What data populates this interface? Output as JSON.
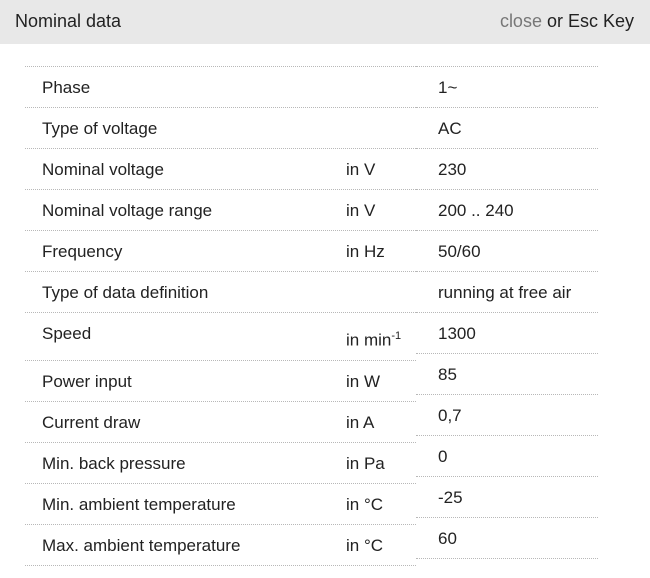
{
  "header": {
    "title": "Nominal data",
    "close_link": "close",
    "close_suffix": " or Esc Key"
  },
  "rows": [
    {
      "label": "Phase",
      "unit": "",
      "value": "1~"
    },
    {
      "label": "Type of voltage",
      "unit": "",
      "value": "AC"
    },
    {
      "label": "Nominal voltage",
      "unit": "in V",
      "value": "230"
    },
    {
      "label": "Nominal voltage range",
      "unit": "in V",
      "value": "200 .. 240"
    },
    {
      "label": "Frequency",
      "unit": "in Hz",
      "value": "50/60"
    },
    {
      "label": "Type of data definition",
      "unit": "",
      "value": "running at free air"
    },
    {
      "label": "Speed",
      "unit": "in min",
      "unit_sup": "-1",
      "value": "1300"
    },
    {
      "label": "Power input",
      "unit": "in W",
      "value": "85"
    },
    {
      "label": "Current draw",
      "unit": "in A",
      "value": "0,7"
    },
    {
      "label": "Min. back pressure",
      "unit": "in Pa",
      "value": "0"
    },
    {
      "label": "Min. ambient temperature",
      "unit": "in °C",
      "value": "-25"
    },
    {
      "label": "Max. ambient temperature",
      "unit": "in °C",
      "value": "60"
    }
  ]
}
